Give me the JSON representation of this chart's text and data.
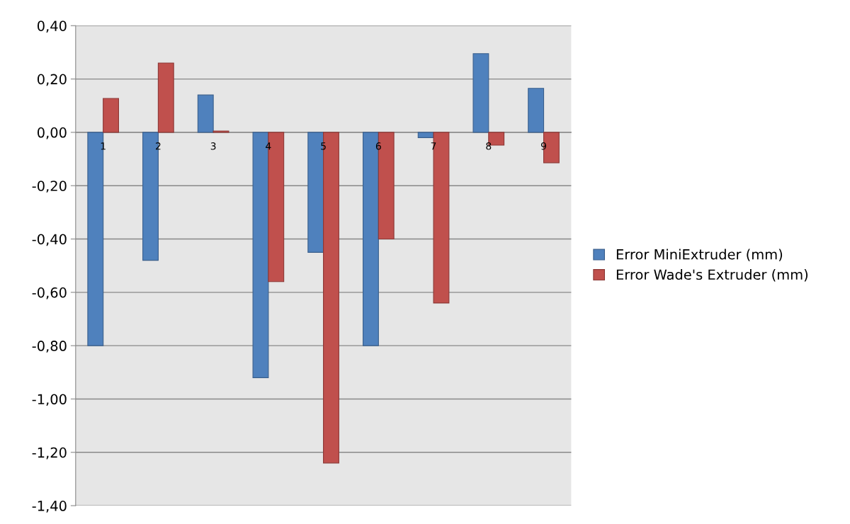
{
  "chart_data": {
    "type": "bar",
    "categories": [
      "1",
      "2",
      "3",
      "4",
      "5",
      "6",
      "7",
      "8",
      "9"
    ],
    "series": [
      {
        "name": "Error MiniExtruder (mm)",
        "color": "#4f81bd",
        "values": [
          -0.8,
          -0.48,
          0.14,
          -0.92,
          -0.45,
          -0.8,
          -0.02,
          0.295,
          0.165
        ]
      },
      {
        "name": "Error Wade's Extruder (mm)",
        "color": "#c0504d",
        "values": [
          0.127,
          0.26,
          0.005,
          -0.56,
          -1.24,
          -0.4,
          -0.64,
          -0.048,
          -0.114
        ]
      }
    ],
    "ylim": [
      -1.4,
      0.4
    ],
    "yticks": [
      {
        "value": 0.4,
        "label": "0,40"
      },
      {
        "value": 0.2,
        "label": "0,20"
      },
      {
        "value": 0,
        "label": "0,00"
      },
      {
        "value": -0.2,
        "label": "-0,20"
      },
      {
        "value": -0.4,
        "label": "-0,40"
      },
      {
        "value": -0.6,
        "label": "-0,60"
      },
      {
        "value": -0.8,
        "label": "-0,80"
      },
      {
        "value": -1.0,
        "label": "-1,00"
      },
      {
        "value": -1.2,
        "label": "-1,20"
      },
      {
        "value": -1.4,
        "label": "-1,40"
      }
    ],
    "grid": "y",
    "legend": "right"
  }
}
